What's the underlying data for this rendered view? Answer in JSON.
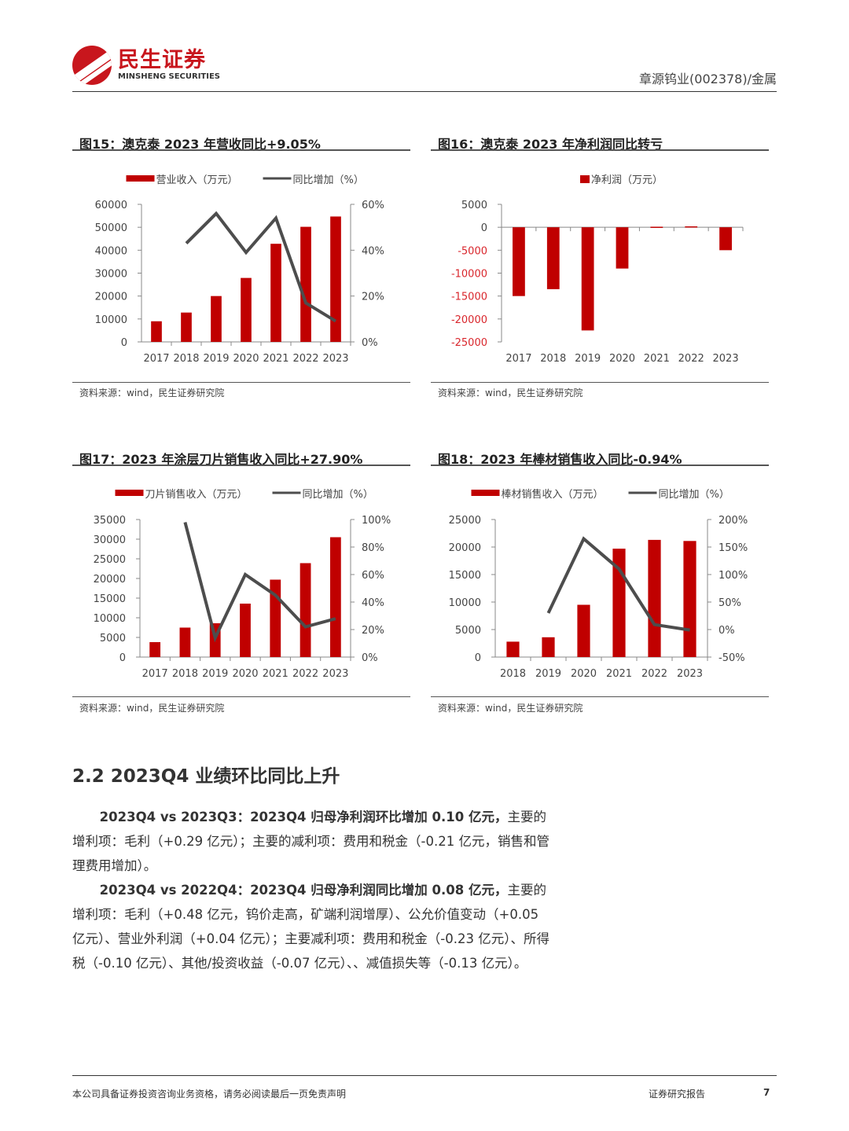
{
  "header": {
    "logo_cn": "民生证券",
    "logo_en": "MINSHENG SECURITIES",
    "right_text": "章源钨业(002378)/金属"
  },
  "colors": {
    "bar": "#c00000",
    "line": "#4d4d4d",
    "brand": "#c8161d",
    "negative_tick": "#d9262c"
  },
  "chart_data": [
    {
      "type": "bar+line",
      "title": "图15：澳克泰 2023 年营收同比+9.05%",
      "source": "资料来源：wind，民生证券研究院",
      "categories": [
        "2017",
        "2018",
        "2019",
        "2020",
        "2021",
        "2022",
        "2023"
      ],
      "series": [
        {
          "name": "营业收入（万元）",
          "kind": "bar",
          "axis": "left",
          "values": [
            9000,
            12800,
            20000,
            27900,
            42800,
            50200,
            54700
          ]
        },
        {
          "name": "同比增加（%）",
          "kind": "line",
          "axis": "right",
          "values": [
            null,
            43,
            56,
            39,
            54,
            17,
            9.05
          ]
        }
      ],
      "ylim": [
        0,
        60000
      ],
      "yticks": [
        "0",
        "10000",
        "20000",
        "30000",
        "40000",
        "50000",
        "60000"
      ],
      "y2lim": [
        0,
        60
      ],
      "y2ticks": [
        "0%",
        "20%",
        "40%",
        "60%"
      ],
      "legend": "top"
    },
    {
      "type": "bar",
      "title": "图16：澳克泰 2023 年净利润同比转亏",
      "source": "资料来源：wind，民生证券研究院",
      "categories": [
        "2017",
        "2018",
        "2019",
        "2020",
        "2021",
        "2022",
        "2023"
      ],
      "series": [
        {
          "name": "净利润（万元）",
          "kind": "bar",
          "axis": "left",
          "values": [
            -15000,
            -13500,
            -22500,
            -9000,
            120,
            200,
            -5000
          ]
        }
      ],
      "ylim": [
        -25000,
        5000
      ],
      "yticks": [
        "-25000",
        "-20000",
        "-15000",
        "-10000",
        "-5000",
        "0",
        "5000"
      ],
      "legend": "top"
    },
    {
      "type": "bar+line",
      "title": "图17：2023 年涂层刀片销售收入同比+27.90%",
      "source": "资料来源：wind，民生证券研究院",
      "categories": [
        "2017",
        "2018",
        "2019",
        "2020",
        "2021",
        "2022",
        "2023"
      ],
      "series": [
        {
          "name": "刀片销售收入（万元）",
          "kind": "bar",
          "axis": "left",
          "values": [
            3800,
            7500,
            8600,
            13600,
            19700,
            23900,
            30500
          ]
        },
        {
          "name": "同比增加（%）",
          "kind": "line",
          "axis": "right",
          "values": [
            null,
            98,
            14,
            60,
            45,
            22,
            27.9
          ]
        }
      ],
      "ylim": [
        0,
        35000
      ],
      "yticks": [
        "0",
        "5000",
        "10000",
        "15000",
        "20000",
        "25000",
        "30000",
        "35000"
      ],
      "y2lim": [
        0,
        100
      ],
      "y2ticks": [
        "0%",
        "20%",
        "40%",
        "60%",
        "80%",
        "100%"
      ],
      "legend": "top"
    },
    {
      "type": "bar+line",
      "title": "图18：2023 年棒材销售收入同比-0.94%",
      "source": "资料来源：wind，民生证券研究院",
      "categories": [
        "2018",
        "2019",
        "2020",
        "2021",
        "2022",
        "2023"
      ],
      "series": [
        {
          "name": "棒材销售收入（万元）",
          "kind": "bar",
          "axis": "left",
          "values": [
            2800,
            3600,
            9500,
            19700,
            21300,
            21100
          ]
        },
        {
          "name": "同比增加（%）",
          "kind": "line",
          "axis": "right",
          "values": [
            null,
            30,
            165,
            110,
            9,
            -0.94
          ]
        }
      ],
      "ylim": [
        0,
        25000
      ],
      "yticks": [
        "0",
        "5000",
        "10000",
        "15000",
        "20000",
        "25000"
      ],
      "y2lim": [
        -50,
        200
      ],
      "y2ticks": [
        "-50%",
        "0%",
        "50%",
        "100%",
        "150%",
        "200%"
      ],
      "legend": "top"
    }
  ],
  "section": {
    "heading": "2.2 2023Q4 业绩环比同比上升",
    "p1_bold": "2023Q4 vs 2023Q3：2023Q4 归母净利润环比增加 0.10 亿元，",
    "p1_text": "主要的增利项：毛利（+0.29 亿元）；主要的减利项：费用和税金（-0.21 亿元，销售和管理费用增加）。",
    "p2_bold": "2023Q4 vs 2022Q4：2023Q4 归母净利润同比增加 0.08 亿元，",
    "p2_text": "主要的增利项：毛利（+0.48 亿元，钨价走高，矿端利润增厚）、公允价值变动（+0.05 亿元）、营业外利润（+0.04 亿元）；主要减利项：费用和税金（-0.23 亿元）、所得税（-0.10 亿元）、其他/投资收益（-0.07 亿元）、、减值损失等（-0.13 亿元）。"
  },
  "footer": {
    "disclaimer": "本公司具备证券投资咨询业务资格，请务必阅读最后一页免责声明",
    "report_type": "证券研究报告",
    "page": "7"
  }
}
